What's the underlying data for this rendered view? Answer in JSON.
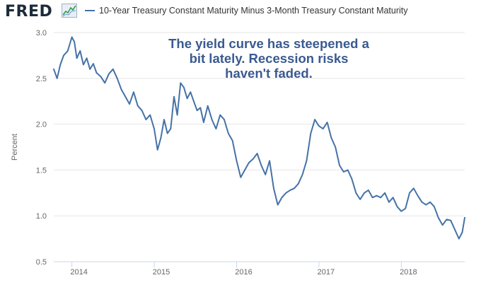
{
  "header": {
    "logo_text": "FRED",
    "logo_icon": "chart-line-icon"
  },
  "chart_data": {
    "type": "line",
    "title": "",
    "ylabel": "Percent",
    "xlabel": "",
    "ylim": [
      0.5,
      3.0
    ],
    "xlim": [
      2013.78,
      2018.77
    ],
    "yticks": [
      "0.5",
      "1.0",
      "1.5",
      "2.0",
      "2.5",
      "3.0"
    ],
    "ytick_values": [
      0.5,
      1.0,
      1.5,
      2.0,
      2.5,
      3.0
    ],
    "xticks": [
      "2014",
      "2015",
      "2016",
      "2017",
      "2018"
    ],
    "xtick_values": [
      2014,
      2015,
      2016,
      2017,
      2018
    ],
    "grid": "horizontal",
    "line_color": "#4572a7",
    "series": [
      {
        "name": "10-Year Treasury Constant Maturity Minus 3-Month Treasury Constant Maturity",
        "x": [
          2013.78,
          2013.82,
          2013.86,
          2013.9,
          2013.95,
          2014.0,
          2014.03,
          2014.06,
          2014.1,
          2014.14,
          2014.18,
          2014.22,
          2014.26,
          2014.3,
          2014.35,
          2014.4,
          2014.45,
          2014.5,
          2014.55,
          2014.6,
          2014.65,
          2014.7,
          2014.75,
          2014.8,
          2014.85,
          2014.9,
          2014.95,
          2015.0,
          2015.04,
          2015.08,
          2015.12,
          2015.16,
          2015.2,
          2015.24,
          2015.28,
          2015.32,
          2015.36,
          2015.4,
          2015.44,
          2015.48,
          2015.52,
          2015.56,
          2015.6,
          2015.65,
          2015.7,
          2015.75,
          2015.8,
          2015.85,
          2015.9,
          2015.95,
          2016.0,
          2016.05,
          2016.1,
          2016.15,
          2016.2,
          2016.25,
          2016.3,
          2016.35,
          2016.4,
          2016.45,
          2016.5,
          2016.55,
          2016.6,
          2016.65,
          2016.7,
          2016.75,
          2016.8,
          2016.85,
          2016.9,
          2016.95,
          2017.0,
          2017.05,
          2017.1,
          2017.15,
          2017.2,
          2017.25,
          2017.3,
          2017.35,
          2017.4,
          2017.45,
          2017.5,
          2017.55,
          2017.6,
          2017.65,
          2017.7,
          2017.75,
          2017.8,
          2017.85,
          2017.9,
          2017.95,
          2018.0,
          2018.05,
          2018.1,
          2018.15,
          2018.2,
          2018.25,
          2018.3,
          2018.35,
          2018.4,
          2018.45,
          2018.5,
          2018.55,
          2018.6,
          2018.65,
          2018.7,
          2018.74,
          2018.77
        ],
        "values": [
          2.6,
          2.5,
          2.65,
          2.75,
          2.8,
          2.95,
          2.9,
          2.72,
          2.8,
          2.65,
          2.72,
          2.6,
          2.66,
          2.56,
          2.52,
          2.45,
          2.55,
          2.6,
          2.5,
          2.38,
          2.3,
          2.22,
          2.35,
          2.2,
          2.15,
          2.05,
          2.1,
          1.95,
          1.72,
          1.85,
          2.05,
          1.9,
          1.95,
          2.3,
          2.1,
          2.45,
          2.4,
          2.28,
          2.35,
          2.25,
          2.15,
          2.18,
          2.02,
          2.2,
          2.05,
          1.95,
          2.1,
          2.05,
          1.9,
          1.82,
          1.6,
          1.42,
          1.5,
          1.58,
          1.62,
          1.68,
          1.55,
          1.45,
          1.6,
          1.3,
          1.12,
          1.2,
          1.25,
          1.28,
          1.3,
          1.35,
          1.45,
          1.6,
          1.9,
          2.05,
          1.98,
          1.95,
          2.02,
          1.85,
          1.75,
          1.55,
          1.48,
          1.5,
          1.4,
          1.25,
          1.18,
          1.25,
          1.28,
          1.2,
          1.22,
          1.2,
          1.25,
          1.15,
          1.2,
          1.1,
          1.05,
          1.08,
          1.25,
          1.3,
          1.22,
          1.15,
          1.12,
          1.15,
          1.1,
          0.98,
          0.9,
          0.96,
          0.95,
          0.85,
          0.75,
          0.82,
          0.98
        ]
      }
    ],
    "annotation": [
      "The yield curve has steepened a",
      "bit lately. Recession risks",
      "haven't faded."
    ]
  }
}
